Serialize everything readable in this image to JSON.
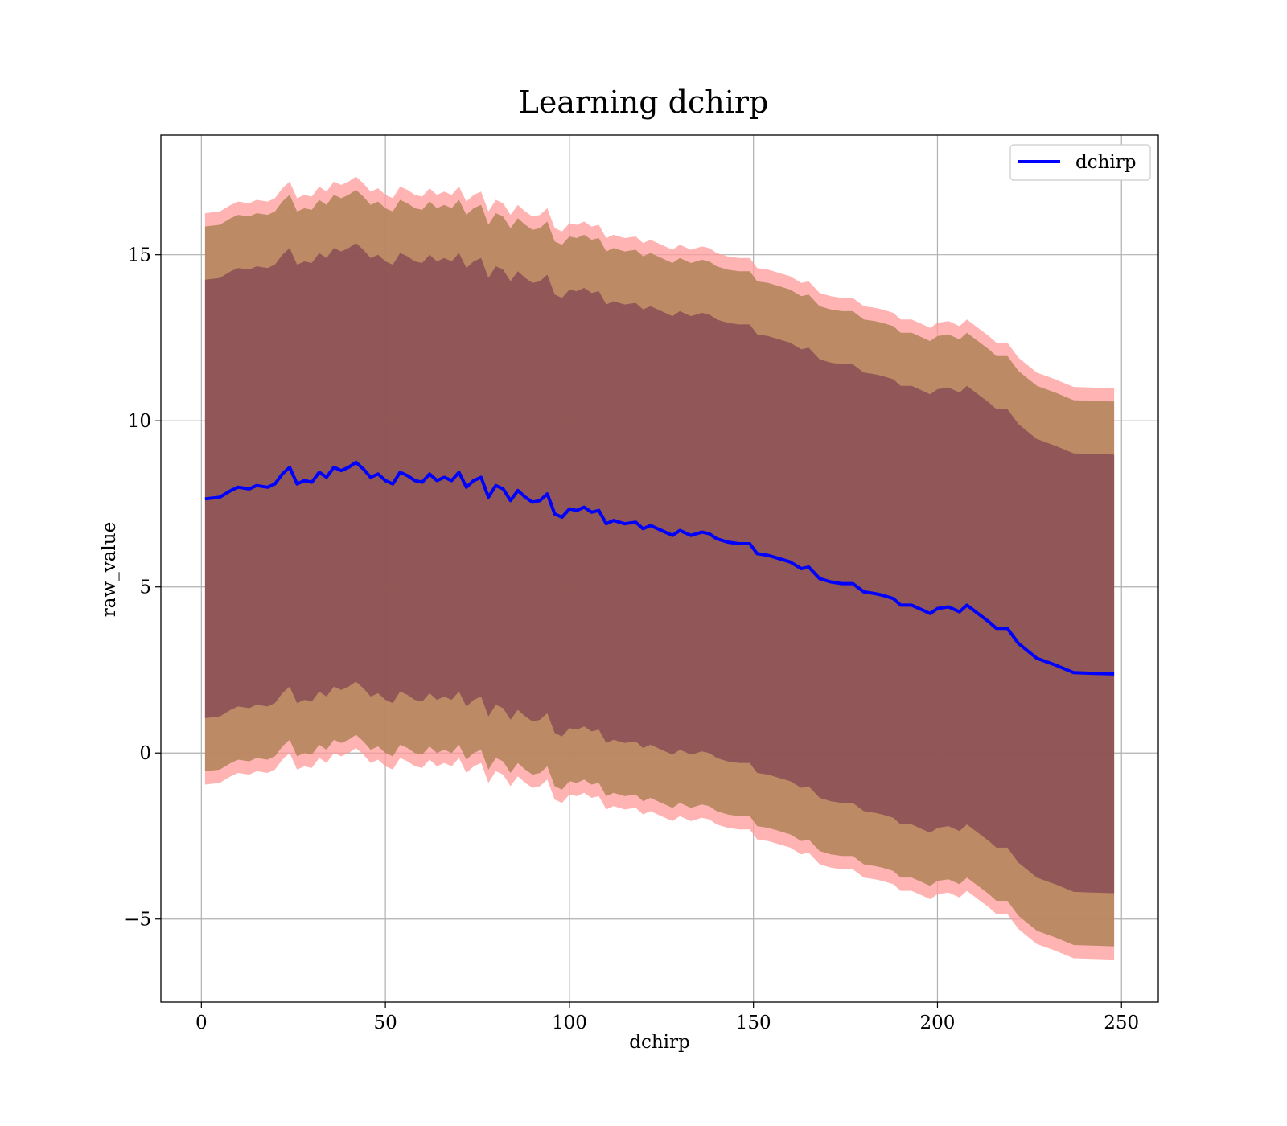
{
  "chart_data": {
    "type": "line",
    "title": "Learning dchirp",
    "xlabel": "dchirp",
    "ylabel": "raw_value",
    "xlim": [
      -11,
      260
    ],
    "ylim": [
      -7.5,
      18.6
    ],
    "xticks": [
      0,
      50,
      100,
      150,
      200,
      250
    ],
    "yticks": [
      -5,
      0,
      5,
      10,
      15
    ],
    "xtick_labels": [
      "0",
      "50",
      "100",
      "150",
      "200",
      "250"
    ],
    "ytick_labels": [
      "−5",
      "0",
      "5",
      "10",
      "15"
    ],
    "grid": true,
    "legend": {
      "position": "top-right",
      "entries": [
        "dchirp"
      ]
    },
    "colors": {
      "line": "#0000ff",
      "band_outer": "#ff9999",
      "band_mid": "#b5855c",
      "band_inner": "#7a3a50"
    },
    "band_offsets": {
      "outer": 8.6,
      "mid": 8.2,
      "inner": 6.6
    },
    "series": [
      {
        "name": "dchirp",
        "x": [
          1,
          5,
          8,
          10,
          13,
          15,
          18,
          20,
          22,
          24,
          26,
          28,
          30,
          32,
          34,
          36,
          38,
          40,
          42,
          44,
          46,
          48,
          50,
          52,
          54,
          56,
          58,
          60,
          62,
          64,
          66,
          68,
          70,
          72,
          74,
          76,
          78,
          80,
          82,
          84,
          86,
          88,
          90,
          92,
          94,
          96,
          98,
          100,
          102,
          104,
          106,
          108,
          110,
          112,
          115,
          118,
          120,
          122,
          125,
          128,
          130,
          133,
          136,
          138,
          140,
          143,
          146,
          149,
          151,
          154,
          157,
          160,
          163,
          165,
          168,
          171,
          174,
          177,
          180,
          183,
          185,
          188,
          190,
          193,
          196,
          198,
          200,
          203,
          206,
          208,
          211,
          214,
          216,
          219,
          222,
          227,
          232,
          237,
          242,
          248
        ],
        "y": [
          7.65,
          7.7,
          7.9,
          8.0,
          7.95,
          8.05,
          8.0,
          8.1,
          8.4,
          8.6,
          8.1,
          8.2,
          8.15,
          8.45,
          8.3,
          8.6,
          8.5,
          8.6,
          8.75,
          8.55,
          8.3,
          8.4,
          8.2,
          8.1,
          8.45,
          8.35,
          8.2,
          8.15,
          8.4,
          8.2,
          8.3,
          8.2,
          8.45,
          8.0,
          8.2,
          8.3,
          7.7,
          8.05,
          7.95,
          7.6,
          7.9,
          7.7,
          7.55,
          7.6,
          7.8,
          7.2,
          7.1,
          7.35,
          7.3,
          7.4,
          7.25,
          7.3,
          6.9,
          7.0,
          6.9,
          6.95,
          6.75,
          6.85,
          6.7,
          6.55,
          6.7,
          6.55,
          6.65,
          6.6,
          6.45,
          6.35,
          6.3,
          6.3,
          6.0,
          5.95,
          5.85,
          5.75,
          5.55,
          5.6,
          5.25,
          5.15,
          5.1,
          5.1,
          4.85,
          4.8,
          4.75,
          4.65,
          4.45,
          4.45,
          4.3,
          4.2,
          4.35,
          4.4,
          4.25,
          4.45,
          4.2,
          3.95,
          3.75,
          3.75,
          3.3,
          2.85,
          2.65,
          2.42,
          2.4,
          2.38
        ]
      }
    ]
  }
}
